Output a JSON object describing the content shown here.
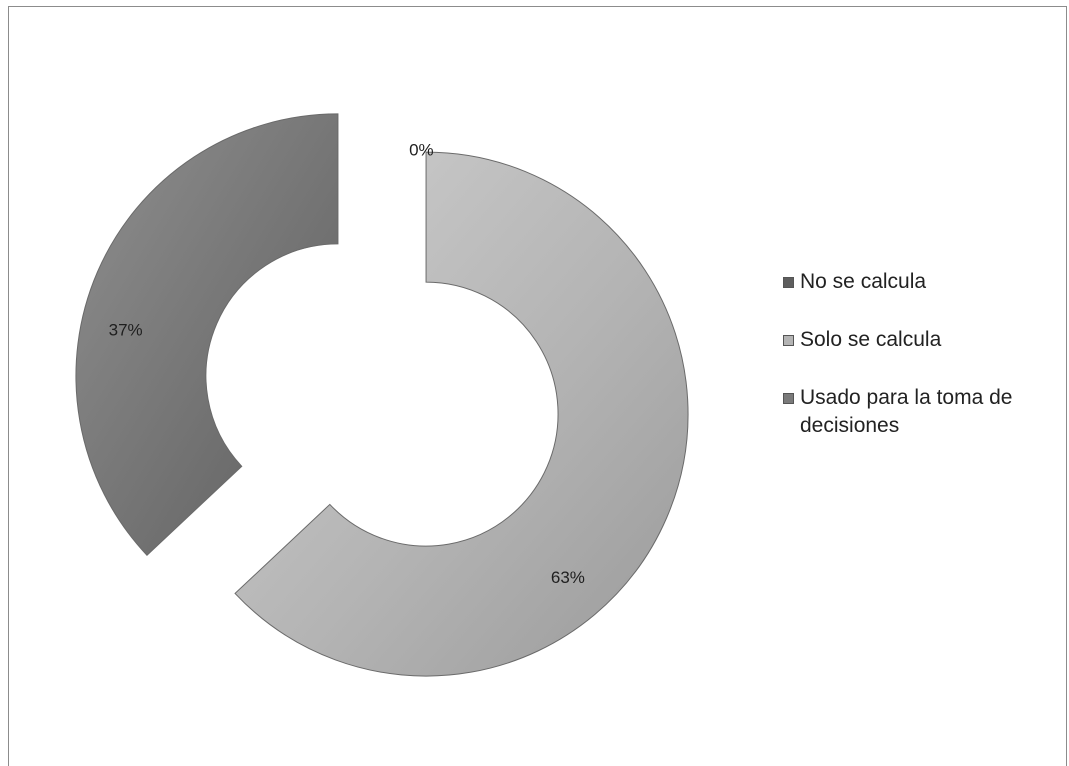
{
  "chart_data": {
    "type": "pie",
    "variant": "exploded-doughnut",
    "categories": [
      "No se calcula",
      "Solo se calcula",
      "Usado para la toma de decisiones"
    ],
    "values": [
      0,
      63,
      37
    ],
    "data_labels": [
      "0%",
      "63%",
      "37%"
    ],
    "colors": [
      "#5e5e5e",
      "#b4b4b4",
      "#7a7a7a"
    ],
    "legend_position": "right"
  }
}
